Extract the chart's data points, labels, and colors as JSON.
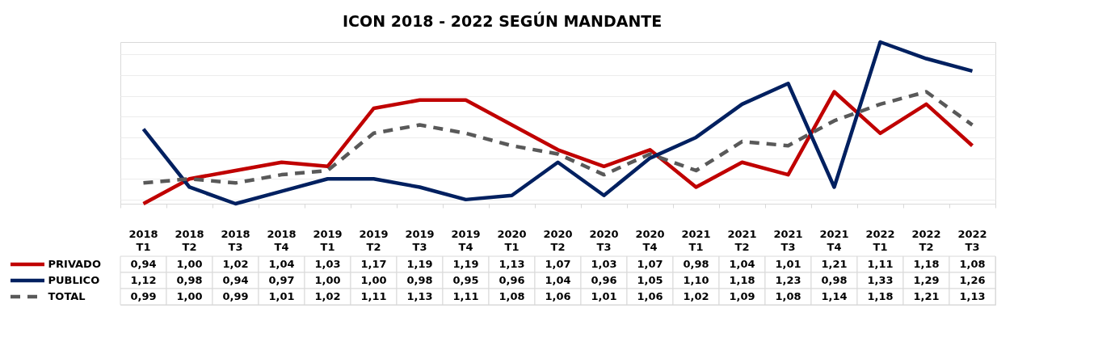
{
  "chart_data": {
    "type": "line",
    "title": "ICON 2018 - 2022   SEGÚN MANDANTE",
    "categories": [
      "2018 T1",
      "2018 T2",
      "2018 T3",
      "2018 T4",
      "2019 T1",
      "2019 T2",
      "2019 T3",
      "2019 T4",
      "2020 T1",
      "2020 T2",
      "2020 T3",
      "2020 T4",
      "2021 T1",
      "2021 T2",
      "2021 T3",
      "2021 T4",
      "2022 T1",
      "2022 T2",
      "2022 T3"
    ],
    "series": [
      {
        "name": "PRIVADO",
        "color": "#c00000",
        "line_style": "solid",
        "values": [
          0.94,
          1.0,
          1.02,
          1.04,
          1.03,
          1.17,
          1.19,
          1.19,
          1.13,
          1.07,
          1.03,
          1.07,
          0.98,
          1.04,
          1.01,
          1.21,
          1.11,
          1.18,
          1.08
        ],
        "value_labels": [
          "0,94",
          "1,00",
          "1,02",
          "1,04",
          "1,03",
          "1,17",
          "1,19",
          "1,19",
          "1,13",
          "1,07",
          "1,03",
          "1,07",
          "0,98",
          "1,04",
          "1,01",
          "1,21",
          "1,11",
          "1,18",
          "1,08"
        ]
      },
      {
        "name": "PUBLICO",
        "color": "#002060",
        "line_style": "solid",
        "values": [
          1.12,
          0.98,
          0.94,
          0.97,
          1.0,
          1.0,
          0.98,
          0.95,
          0.96,
          1.04,
          0.96,
          1.05,
          1.1,
          1.18,
          1.23,
          0.98,
          1.33,
          1.29,
          1.26
        ],
        "value_labels": [
          "1,12",
          "0,98",
          "0,94",
          "0,97",
          "1,00",
          "1,00",
          "0,98",
          "0,95",
          "0,96",
          "1,04",
          "0,96",
          "1,05",
          "1,10",
          "1,18",
          "1,23",
          "0,98",
          "1,33",
          "1,29",
          "1,26"
        ]
      },
      {
        "name": "TOTAL",
        "color": "#595959",
        "line_style": "dashed",
        "values": [
          0.99,
          1.0,
          0.99,
          1.01,
          1.02,
          1.11,
          1.13,
          1.11,
          1.08,
          1.06,
          1.01,
          1.06,
          1.02,
          1.09,
          1.08,
          1.14,
          1.18,
          1.21,
          1.13
        ],
        "value_labels": [
          "0,99",
          "1,00",
          "0,99",
          "1,01",
          "1,02",
          "1,11",
          "1,13",
          "1,11",
          "1,08",
          "1,06",
          "1,01",
          "1,06",
          "1,02",
          "1,09",
          "1,08",
          "1,14",
          "1,18",
          "1,21",
          "1,13"
        ]
      }
    ],
    "tick_labels": "x",
    "grid": "y",
    "legend": "bottom left"
  }
}
